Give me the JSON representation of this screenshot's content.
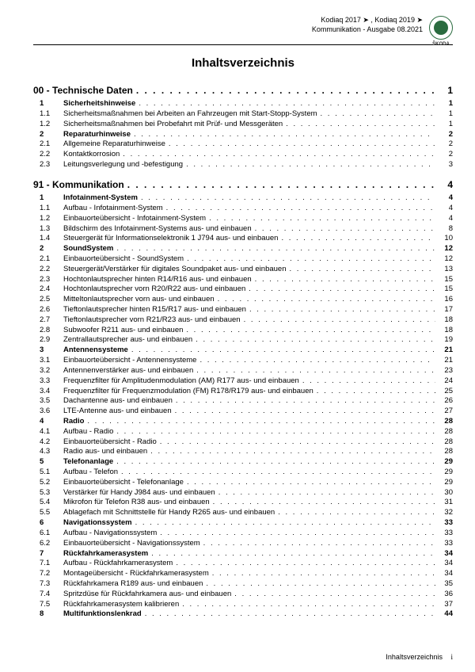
{
  "header": {
    "line1": "Kodiaq 2017 ➤ , Kodiaq 2019 ➤",
    "line2": "Kommunikation - Ausgabe 08.2021",
    "logo_label": "ŠKODA"
  },
  "title": "Inhaltsverzeichnis",
  "sections": [
    {
      "num": "00 -",
      "title": "Technische Daten",
      "page": "1",
      "items": [
        {
          "n": "1",
          "t": "Sicherheitshinweise",
          "p": "1",
          "bold": true
        },
        {
          "n": "1.1",
          "t": "Sicherheitsmaßnahmen bei Arbeiten an Fahrzeugen mit Start-Stopp-System",
          "p": "1"
        },
        {
          "n": "1.2",
          "t": "Sicherheitsmaßnahmen bei Probefahrt mit Prüf- und Messgeräten",
          "p": "1"
        },
        {
          "n": "2",
          "t": "Reparaturhinweise",
          "p": "2",
          "bold": true
        },
        {
          "n": "2.1",
          "t": "Allgemeine Reparaturhinweise",
          "p": "2"
        },
        {
          "n": "2.2",
          "t": "Kontaktkorrosion",
          "p": "2"
        },
        {
          "n": "2.3",
          "t": "Leitungsverlegung und -befestigung",
          "p": "3"
        }
      ]
    },
    {
      "num": "91 -",
      "title": "Kommunikation",
      "page": "4",
      "items": [
        {
          "n": "1",
          "t": "Infotainment-System",
          "p": "4",
          "bold": true
        },
        {
          "n": "1.1",
          "t": "Aufbau - Infotainment-System",
          "p": "4"
        },
        {
          "n": "1.2",
          "t": "Einbauorteübersicht - Infotainment-System",
          "p": "4"
        },
        {
          "n": "1.3",
          "t": "Bildschirm des Infotainment-Systems aus- und einbauen",
          "p": "8"
        },
        {
          "n": "1.4",
          "t": "Steuergerät für Informationselektronik 1 J794 aus- und einbauen",
          "p": "10"
        },
        {
          "n": "2",
          "t": "SoundSystem",
          "p": "12",
          "bold": true
        },
        {
          "n": "2.1",
          "t": "Einbauorteübersicht - SoundSystem",
          "p": "12"
        },
        {
          "n": "2.2",
          "t": "Steuergerät/Verstärker für digitales Soundpaket aus- und einbauen",
          "p": "13"
        },
        {
          "n": "2.3",
          "t": "Hochtonlautsprecher hinten R14/R16 aus- und einbauen",
          "p": "15"
        },
        {
          "n": "2.4",
          "t": "Hochtonlautsprecher vorn R20/R22 aus- und einbauen",
          "p": "15"
        },
        {
          "n": "2.5",
          "t": "Mitteltonlautsprecher vorn aus- und einbauen",
          "p": "16"
        },
        {
          "n": "2.6",
          "t": "Tieftonlautsprecher hinten R15/R17 aus- und einbauen",
          "p": "17"
        },
        {
          "n": "2.7",
          "t": "Tieftonlautsprecher vorn R21/R23 aus- und einbauen",
          "p": "18"
        },
        {
          "n": "2.8",
          "t": "Subwoofer R211 aus- und einbauen",
          "p": "18"
        },
        {
          "n": "2.9",
          "t": "Zentrallautsprecher aus- und einbauen",
          "p": "19"
        },
        {
          "n": "3",
          "t": "Antennensysteme",
          "p": "21",
          "bold": true
        },
        {
          "n": "3.1",
          "t": "Einbauorteübersicht - Antennensysteme",
          "p": "21"
        },
        {
          "n": "3.2",
          "t": "Antennenverstärker aus- und einbauen",
          "p": "23"
        },
        {
          "n": "3.3",
          "t": "Frequenzfilter für Amplitudenmodulation (AM) R177 aus- und einbauen",
          "p": "24"
        },
        {
          "n": "3.4",
          "t": "Frequenzfilter für Frequenzmodulation (FM) R178/R179 aus- und einbauen",
          "p": "25"
        },
        {
          "n": "3.5",
          "t": "Dachantenne aus- und einbauen",
          "p": "26"
        },
        {
          "n": "3.6",
          "t": "LTE-Antenne aus- und einbauen",
          "p": "27"
        },
        {
          "n": "4",
          "t": "Radio",
          "p": "28",
          "bold": true
        },
        {
          "n": "4.1",
          "t": "Aufbau - Radio",
          "p": "28"
        },
        {
          "n": "4.2",
          "t": "Einbauorteübersicht - Radio",
          "p": "28"
        },
        {
          "n": "4.3",
          "t": "Radio aus- und einbauen",
          "p": "28"
        },
        {
          "n": "5",
          "t": "Telefonanlage",
          "p": "29",
          "bold": true
        },
        {
          "n": "5.1",
          "t": "Aufbau - Telefon",
          "p": "29"
        },
        {
          "n": "5.2",
          "t": "Einbauorteübersicht - Telefonanlage",
          "p": "29"
        },
        {
          "n": "5.3",
          "t": "Verstärker für Handy J984 aus- und einbauen",
          "p": "30"
        },
        {
          "n": "5.4",
          "t": "Mikrofon für Telefon R38 aus- und einbauen",
          "p": "31"
        },
        {
          "n": "5.5",
          "t": "Ablagefach mit Schnittstelle für Handy R265 aus- und einbauen",
          "p": "32"
        },
        {
          "n": "6",
          "t": "Navigationssystem",
          "p": "33",
          "bold": true
        },
        {
          "n": "6.1",
          "t": "Aufbau - Navigationssystem",
          "p": "33"
        },
        {
          "n": "6.2",
          "t": "Einbauorteübersicht - Navigationssystem",
          "p": "33"
        },
        {
          "n": "7",
          "t": "Rückfahrkamerasystem",
          "p": "34",
          "bold": true
        },
        {
          "n": "7.1",
          "t": "Aufbau - Rückfahrkamerasystem",
          "p": "34"
        },
        {
          "n": "7.2",
          "t": "Montageübersicht - Rückfahrkamerasystem",
          "p": "34"
        },
        {
          "n": "7.3",
          "t": "Rückfahrkamera R189 aus- und einbauen",
          "p": "35"
        },
        {
          "n": "7.4",
          "t": "Spritzdüse für Rückfahrkamera aus- und einbauen",
          "p": "36"
        },
        {
          "n": "7.5",
          "t": "Rückfahrkamerasystem kalibrieren",
          "p": "37"
        },
        {
          "n": "8",
          "t": "Multifunktionslenkrad",
          "p": "44",
          "bold": true
        }
      ]
    }
  ],
  "footer": {
    "label": "Inhaltsverzeichnis",
    "page": "i"
  },
  "dots": ". . . . . . . . . . . . . . . . . . . . . . . . . . . . . . . . . . . . . . . . . . . . . . . . . . . . . . . . . . . . . . . . . . . . . . . . . . . . . . . . . . . . . . . . . . . . . . . . . . . . ."
}
